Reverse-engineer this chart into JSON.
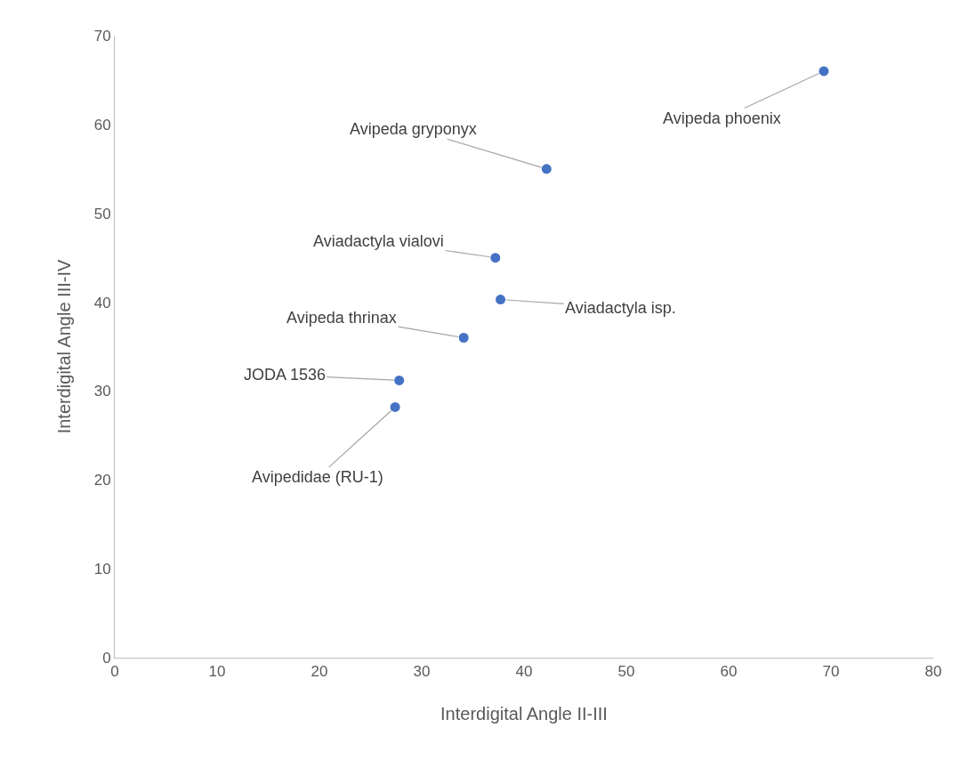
{
  "chart_data": {
    "type": "scatter",
    "xlabel": "Interdigital Angle II-III",
    "ylabel": "Interdigital Angle III-IV",
    "x": [
      69.3,
      42.2,
      37.2,
      37.7,
      34.1,
      27.8,
      27.4
    ],
    "series": [
      {
        "color": "#4472c4",
        "values": [
          66,
          55,
          45,
          40.3,
          36,
          31.2,
          28.2
        ]
      }
    ],
    "xlim": [
      0,
      80
    ],
    "xticks": [
      0,
      10,
      20,
      30,
      40,
      50,
      60,
      70,
      80
    ],
    "ylim": [
      0,
      70
    ],
    "yticks": [
      0,
      10,
      20,
      30,
      40,
      50,
      60,
      70
    ],
    "grid": false,
    "marker": "circle",
    "annotations": [
      {
        "text": "Avipeda phoenix",
        "x": 69.3,
        "y": 66
      },
      {
        "text": "Avipeda gryponyx",
        "x": 42.2,
        "y": 55
      },
      {
        "text": "Aviadactyla vialovi",
        "x": 37.2,
        "y": 45
      },
      {
        "text": "Aviadactyla isp.",
        "x": 37.7,
        "y": 40.3
      },
      {
        "text": "Avipeda thrinax",
        "x": 34.1,
        "y": 36
      },
      {
        "text": "JODA 1536",
        "x": 27.8,
        "y": 31.2
      },
      {
        "text": "Avipedidae (RU-1)",
        "x": 27.4,
        "y": 28.2
      }
    ]
  }
}
